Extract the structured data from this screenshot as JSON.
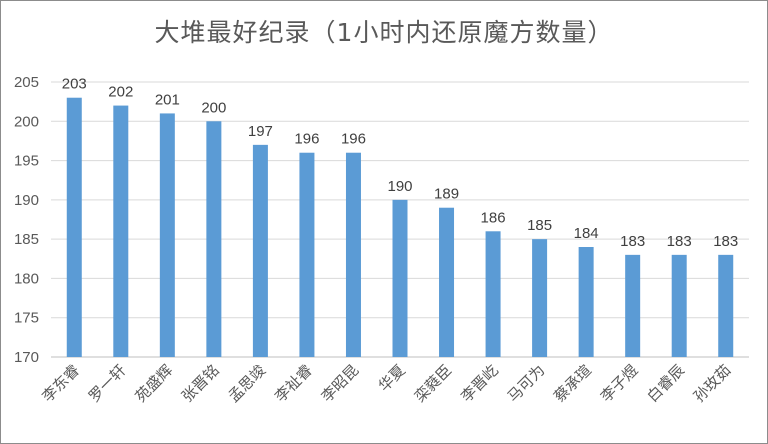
{
  "chart_data": {
    "type": "bar",
    "title": "大堆最好纪录（1小时内还原魔方数量）",
    "xlabel": "",
    "ylabel": "",
    "ylim": [
      170,
      205
    ],
    "yticks": [
      170,
      175,
      180,
      185,
      190,
      195,
      200,
      205
    ],
    "grid": true,
    "legend": "none",
    "bar_color": "#5b9bd5",
    "categories": [
      "李东睿",
      "罗一轩",
      "苑盛辉",
      "张晋铭",
      "孟思竣",
      "李祉睿",
      "李昭昆",
      "华夏",
      "栾蕤臣",
      "李晋屹",
      "马可为",
      "蔡承瑄",
      "李子煜",
      "白睿辰",
      "孙玫茹"
    ],
    "values": [
      203,
      202,
      201,
      200,
      197,
      196,
      196,
      190,
      189,
      186,
      185,
      184,
      183,
      183,
      183
    ]
  }
}
